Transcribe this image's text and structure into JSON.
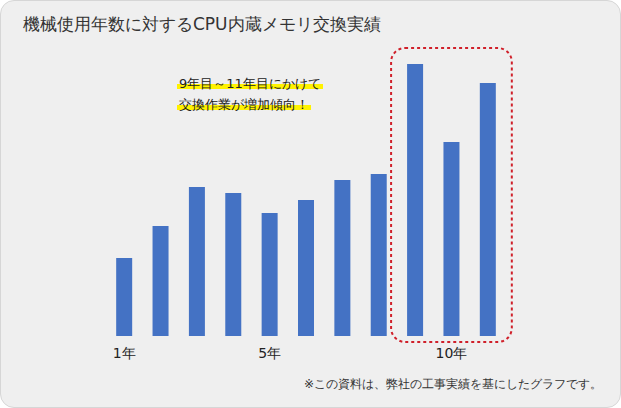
{
  "chart_data": {
    "type": "bar",
    "title": "機械使用年数に対するCPU内蔵メモリ交換実績",
    "annotations": [
      "9年目～11年目にかけて",
      "交換作業が増加傾向！"
    ],
    "note": "※この資料は、弊社の工事実績を基にしたグラフです。",
    "categories": [
      "1年",
      null,
      null,
      null,
      "5年",
      null,
      null,
      null,
      null,
      "10年",
      null
    ],
    "values": [
      78,
      110,
      149,
      143,
      123,
      136,
      156,
      162,
      272,
      194,
      253
    ],
    "color": "#4472c4",
    "ylim": [
      0,
      280
    ],
    "grid": false,
    "tick_labels": "x",
    "data_labels": false
  }
}
